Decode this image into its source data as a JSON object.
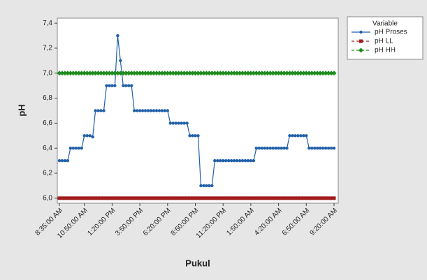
{
  "chart_data": {
    "type": "line",
    "x_label": "Pukul",
    "y_label": "pH",
    "legend_title": "Variable",
    "legend": "upper right",
    "categories": [
      "8:35:00 AM",
      null,
      null,
      null,
      null,
      null,
      null,
      null,
      null,
      "10:50:00 AM",
      null,
      null,
      null,
      null,
      null,
      null,
      null,
      null,
      null,
      "1:20:00 PM",
      null,
      null,
      null,
      null,
      null,
      null,
      null,
      null,
      null,
      "3:50:00 PM",
      null,
      null,
      null,
      null,
      null,
      null,
      null,
      null,
      null,
      "6:20:00 PM",
      null,
      null,
      null,
      null,
      null,
      null,
      null,
      null,
      null,
      "8:50:00 PM",
      null,
      null,
      null,
      null,
      null,
      null,
      null,
      null,
      null,
      "11:20:00 PM",
      null,
      null,
      null,
      null,
      null,
      null,
      null,
      null,
      null,
      "1:50:00 AM",
      null,
      null,
      null,
      null,
      null,
      null,
      null,
      null,
      null,
      "4:20:00 AM",
      null,
      null,
      null,
      null,
      null,
      null,
      null,
      null,
      null,
      "6:50:00 AM",
      null,
      null,
      null,
      null,
      null,
      null,
      null,
      null,
      null,
      "9:20:00 AM"
    ],
    "series": [
      {
        "name": "pH  Proses",
        "color": "#1f5fa8",
        "marker": "circle",
        "dash": false,
        "values": [
          6.3,
          6.3,
          6.3,
          6.3,
          6.4,
          6.4,
          6.4,
          6.4,
          6.4,
          6.5,
          6.5,
          6.5,
          6.49,
          6.7,
          6.7,
          6.7,
          6.7,
          6.9,
          6.9,
          6.9,
          6.9,
          7.3,
          7.1,
          6.9,
          6.9,
          6.9,
          6.9,
          6.7,
          6.7,
          6.7,
          6.7,
          6.7,
          6.7,
          6.7,
          6.7,
          6.7,
          6.7,
          6.7,
          6.7,
          6.7,
          6.6,
          6.6,
          6.6,
          6.6,
          6.6,
          6.6,
          6.6,
          6.5,
          6.5,
          6.5,
          6.5,
          6.1,
          6.1,
          6.1,
          6.1,
          6.1,
          6.3,
          6.3,
          6.3,
          6.3,
          6.3,
          6.3,
          6.3,
          6.3,
          6.3,
          6.3,
          6.3,
          6.3,
          6.3,
          6.3,
          6.3,
          6.4,
          6.4,
          6.4,
          6.4,
          6.4,
          6.4,
          6.4,
          6.4,
          6.4,
          6.4,
          6.4,
          6.4,
          6.5,
          6.5,
          6.5,
          6.5,
          6.5,
          6.5,
          6.5,
          6.4,
          6.4,
          6.4,
          6.4,
          6.4,
          6.4,
          6.4,
          6.4,
          6.4,
          6.4
        ]
      },
      {
        "name": "pH LL",
        "color": "#a01c1c",
        "marker": "square",
        "dash": true,
        "values": [
          6,
          6,
          6,
          6,
          6,
          6,
          6,
          6,
          6,
          6,
          6,
          6,
          6,
          6,
          6,
          6,
          6,
          6,
          6,
          6,
          6,
          6,
          6,
          6,
          6,
          6,
          6,
          6,
          6,
          6,
          6,
          6,
          6,
          6,
          6,
          6,
          6,
          6,
          6,
          6,
          6,
          6,
          6,
          6,
          6,
          6,
          6,
          6,
          6,
          6,
          6,
          6,
          6,
          6,
          6,
          6,
          6,
          6,
          6,
          6,
          6,
          6,
          6,
          6,
          6,
          6,
          6,
          6,
          6,
          6,
          6,
          6,
          6,
          6,
          6,
          6,
          6,
          6,
          6,
          6,
          6,
          6,
          6,
          6,
          6,
          6,
          6,
          6,
          6,
          6,
          6,
          6,
          6,
          6,
          6,
          6,
          6,
          6,
          6,
          6
        ]
      },
      {
        "name": "pH HH",
        "color": "#1f8c1f",
        "marker": "diamond",
        "dash": true,
        "values": [
          7,
          7,
          7,
          7,
          7,
          7,
          7,
          7,
          7,
          7,
          7,
          7,
          7,
          7,
          7,
          7,
          7,
          7,
          7,
          7,
          7,
          7,
          7,
          7,
          7,
          7,
          7,
          7,
          7,
          7,
          7,
          7,
          7,
          7,
          7,
          7,
          7,
          7,
          7,
          7,
          7,
          7,
          7,
          7,
          7,
          7,
          7,
          7,
          7,
          7,
          7,
          7,
          7,
          7,
          7,
          7,
          7,
          7,
          7,
          7,
          7,
          7,
          7,
          7,
          7,
          7,
          7,
          7,
          7,
          7,
          7,
          7,
          7,
          7,
          7,
          7,
          7,
          7,
          7,
          7,
          7,
          7,
          7,
          7,
          7,
          7,
          7,
          7,
          7,
          7,
          7,
          7,
          7,
          7,
          7,
          7,
          7,
          7,
          7,
          7
        ]
      }
    ],
    "ylim": [
      5.96,
      7.44
    ],
    "yticks": [
      {
        "value": 6.0,
        "label": "6,0"
      },
      {
        "value": 6.2,
        "label": "6,2"
      },
      {
        "value": 6.4,
        "label": "6,4"
      },
      {
        "value": 6.6,
        "label": "6,6"
      },
      {
        "value": 6.8,
        "label": "6,8"
      },
      {
        "value": 7.0,
        "label": "7,0"
      },
      {
        "value": 7.2,
        "label": "7,2"
      },
      {
        "value": 7.4,
        "label": "7,4"
      }
    ],
    "grid": false
  }
}
